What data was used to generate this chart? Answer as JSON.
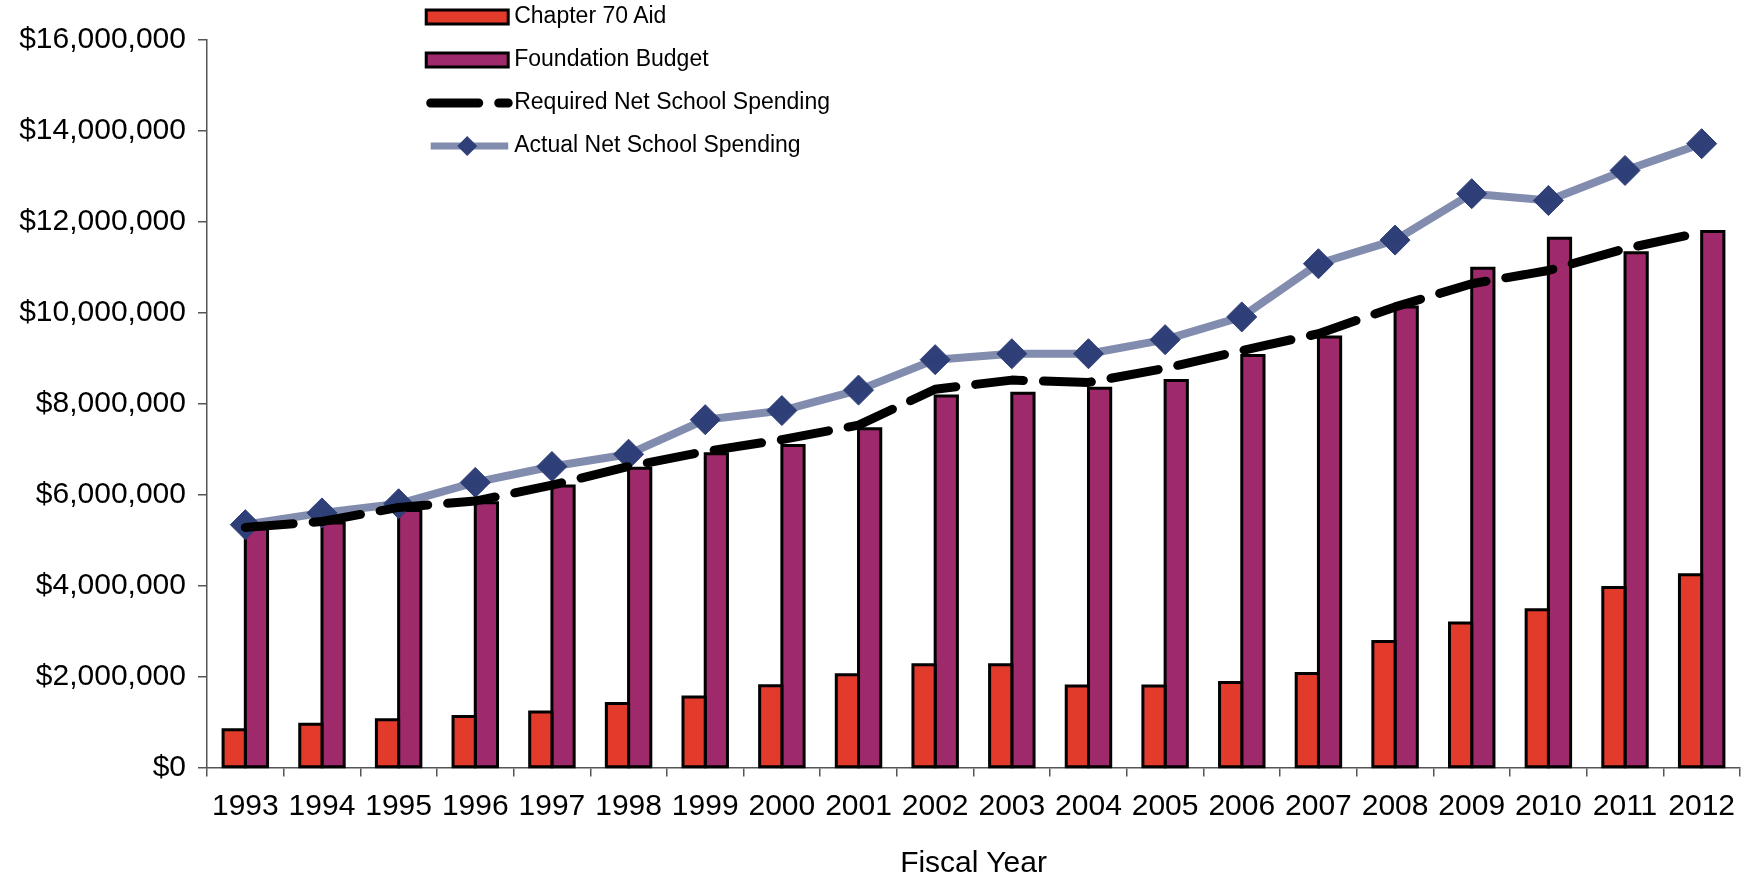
{
  "chart_data": {
    "type": "bar",
    "xlabel": "Fiscal Year",
    "legend": "top left",
    "categories": [
      "1993",
      "1994",
      "1995",
      "1996",
      "1997",
      "1998",
      "1999",
      "2000",
      "2001",
      "2002",
      "2003",
      "2004",
      "2005",
      "2006",
      "2007",
      "2008",
      "2009",
      "2010",
      "2011",
      "2012"
    ],
    "series": [
      {
        "name": "Chapter 70 Aid",
        "color": "#e23b2b",
        "values": [
          830000,
          950000,
          1050000,
          1120000,
          1220000,
          1410000,
          1550000,
          1800000,
          2040000,
          2260000,
          2260000,
          1790000,
          1790000,
          1870000,
          2070000,
          2770000,
          3180000,
          3470000,
          3960000,
          4240000
        ]
      },
      {
        "name": "Foundation Budget",
        "color": "#9e2a6c",
        "values": [
          5250000,
          5380000,
          5650000,
          5820000,
          6190000,
          6580000,
          6900000,
          7080000,
          7450000,
          8170000,
          8230000,
          8340000,
          8510000,
          9060000,
          9470000,
          10130000,
          10980000,
          11640000,
          11320000,
          11790000
        ]
      },
      {
        "name": "Required Net School Spending",
        "type": "line",
        "color": "#000000",
        "line_style": "dashed",
        "marker": "none",
        "values": [
          5280000,
          5410000,
          5720000,
          5860000,
          6210000,
          6620000,
          6950000,
          7210000,
          7530000,
          8320000,
          8520000,
          8470000,
          8780000,
          9170000,
          9540000,
          10130000,
          10640000,
          10930000,
          11410000,
          11770000
        ]
      },
      {
        "name": "Actual Net School Spending",
        "type": "line",
        "color": "#2f3f78",
        "line_style": "solid",
        "marker": "diamond",
        "values": [
          5340000,
          5600000,
          5800000,
          6270000,
          6620000,
          6890000,
          7650000,
          7850000,
          8300000,
          8970000,
          9100000,
          9100000,
          9410000,
          9910000,
          11080000,
          11600000,
          12620000,
          12470000,
          13130000,
          13720000
        ]
      }
    ],
    "ylim": [
      0,
      16000000
    ],
    "yticks": [
      {
        "value": 0,
        "label": "$0"
      },
      {
        "value": 2000000,
        "label": "$2,000,000"
      },
      {
        "value": 4000000,
        "label": "$4,000,000"
      },
      {
        "value": 6000000,
        "label": "$6,000,000"
      },
      {
        "value": 8000000,
        "label": "$8,000,000"
      },
      {
        "value": 10000000,
        "label": "$10,000,000"
      },
      {
        "value": 12000000,
        "label": "$12,000,000"
      },
      {
        "value": 14000000,
        "label": "$14,000,000"
      },
      {
        "value": 16000000,
        "label": "$16,000,000"
      }
    ]
  }
}
